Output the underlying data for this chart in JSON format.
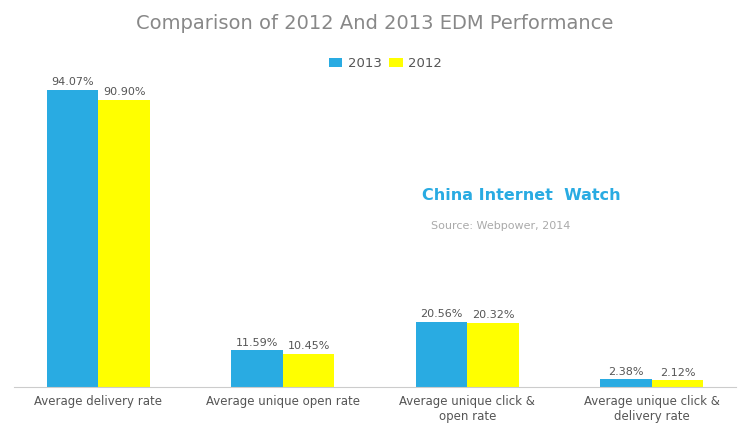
{
  "title": "Comparison of 2012 And 2013 EDM Performance",
  "categories": [
    "Average delivery rate",
    "Average unique open rate",
    "Average unique click &\nopen rate",
    "Average unique click &\ndelivery rate"
  ],
  "values_2013": [
    94.07,
    11.59,
    20.56,
    2.38
  ],
  "values_2012": [
    90.9,
    10.45,
    20.32,
    2.12
  ],
  "labels_2013": [
    "94.07%",
    "11.59%",
    "20.56%",
    "2.38%"
  ],
  "labels_2012": [
    "90.90%",
    "10.45%",
    "20.32%",
    "2.12%"
  ],
  "color_2013": "#29ABE2",
  "color_2012": "#FFFF00",
  "legend_2013": "2013",
  "legend_2012": "2012",
  "watermark_main": "China Internet  Watch",
  "watermark_sub": "Source: Webpower, 2014",
  "watermark_color_main": "#29ABE2",
  "watermark_color_sub": "#AAAAAA",
  "title_color": "#888888",
  "bar_width": 0.28,
  "ylim": [
    0,
    108
  ],
  "background_color": "#ffffff"
}
